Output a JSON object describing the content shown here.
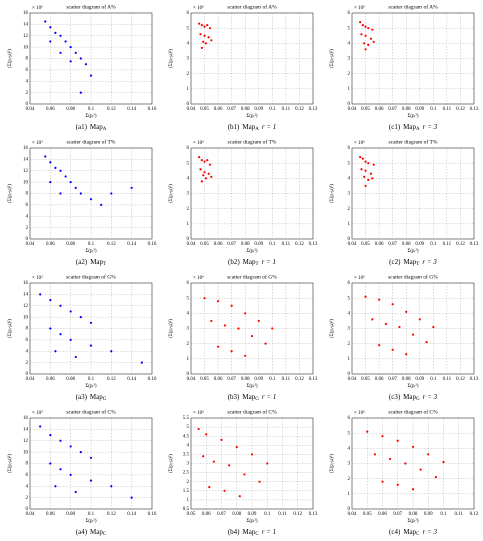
{
  "chart_data": [
    {
      "type": "scatter",
      "title": "scatter diagram of A%",
      "xlabel": "Σ(pᵢ²)",
      "ylabel": "(Σ(pᵢ-μ)²)",
      "multiplier": "× 10⁵",
      "caption_id": "(a1)",
      "caption_map": "Map",
      "caption_sub": "A",
      "color": "#0000ff",
      "xlim": [
        0.04,
        0.16
      ],
      "xticks": [
        0.04,
        0.06,
        0.08,
        0.1,
        0.12,
        0.14,
        0.16
      ],
      "ylim": [
        0,
        16
      ],
      "yticks": [
        0,
        2,
        4,
        6,
        8,
        10,
        12,
        14,
        16
      ],
      "grid": true,
      "x": [
        0.055,
        0.06,
        0.065,
        0.07,
        0.075,
        0.08,
        0.085,
        0.09,
        0.095,
        0.1,
        0.06,
        0.07,
        0.08,
        0.09
      ],
      "values": [
        14.5,
        13.5,
        12.5,
        12,
        11,
        10,
        9,
        8,
        7,
        5,
        11,
        9,
        7.5,
        2
      ]
    },
    {
      "type": "scatter",
      "title": "scatter diagram of A%",
      "xlabel": "Σ(pᵢ²)",
      "ylabel": "(Σ(pᵢ-μ)²)",
      "multiplier": "× 10⁶",
      "caption_id": "(b1)",
      "caption_map": "Map",
      "caption_sub": "A",
      "caption_r": "r = 1",
      "color": "#ff0000",
      "xlim": [
        0.04,
        0.13
      ],
      "xticks": [
        0.04,
        0.05,
        0.06,
        0.07,
        0.08,
        0.09,
        0.1,
        0.11,
        0.12,
        0.13
      ],
      "ylim": [
        0,
        6
      ],
      "yticks": [
        0,
        1,
        2,
        3,
        4,
        5,
        6
      ],
      "grid": true,
      "x": [
        0.046,
        0.048,
        0.05,
        0.052,
        0.054,
        0.047,
        0.05,
        0.053,
        0.049,
        0.051,
        0.055,
        0.048
      ],
      "values": [
        5.3,
        5.2,
        5.1,
        5.2,
        5.0,
        4.6,
        4.5,
        4.4,
        4.1,
        4.0,
        4.2,
        3.7
      ]
    },
    {
      "type": "scatter",
      "title": "scatter diagram of A%",
      "xlabel": "Σ(pᵢ²)",
      "ylabel": "(Σ(pᵢ-μ)²)",
      "multiplier": "× 10⁶",
      "caption_id": "(c1)",
      "caption_map": "Map",
      "caption_sub": "A",
      "caption_r": "r = 3",
      "color": "#ff0000",
      "xlim": [
        0.04,
        0.13
      ],
      "xticks": [
        0.04,
        0.05,
        0.06,
        0.07,
        0.08,
        0.09,
        0.1,
        0.11,
        0.12,
        0.13
      ],
      "ylim": [
        0,
        6
      ],
      "yticks": [
        0,
        1,
        2,
        3,
        4,
        5,
        6
      ],
      "grid": true,
      "x": [
        0.046,
        0.048,
        0.05,
        0.052,
        0.055,
        0.047,
        0.05,
        0.054,
        0.049,
        0.052,
        0.056,
        0.05
      ],
      "values": [
        5.4,
        5.2,
        5.1,
        5.0,
        4.9,
        4.6,
        4.5,
        4.3,
        4.0,
        3.9,
        4.1,
        3.6
      ]
    },
    {
      "type": "scatter",
      "title": "scatter diagram of T%",
      "xlabel": "Σ(pᵢ²)",
      "ylabel": "(Σ(pᵢ-μ)²)",
      "multiplier": "× 10⁵",
      "caption_id": "(a2)",
      "caption_map": "Map",
      "caption_sub": "T",
      "color": "#0000ff",
      "xlim": [
        0.04,
        0.16
      ],
      "xticks": [
        0.04,
        0.06,
        0.08,
        0.1,
        0.12,
        0.14,
        0.16
      ],
      "ylim": [
        0,
        16
      ],
      "yticks": [
        0,
        2,
        4,
        6,
        8,
        10,
        12,
        14,
        16
      ],
      "grid": true,
      "x": [
        0.055,
        0.06,
        0.065,
        0.07,
        0.075,
        0.08,
        0.085,
        0.09,
        0.1,
        0.11,
        0.06,
        0.07,
        0.12,
        0.14
      ],
      "values": [
        14.5,
        13.5,
        12.5,
        12,
        11,
        10,
        9,
        8,
        7,
        6,
        10,
        8,
        8,
        9
      ]
    },
    {
      "type": "scatter",
      "title": "scatter diagram of T%",
      "xlabel": "Σ(pᵢ²)",
      "ylabel": "(Σ(pᵢ-μ)²)",
      "multiplier": "× 10⁶",
      "caption_id": "(b2)",
      "caption_map": "Map",
      "caption_sub": "T",
      "caption_r": "r = 1",
      "color": "#ff0000",
      "xlim": [
        0.04,
        0.13
      ],
      "xticks": [
        0.04,
        0.05,
        0.06,
        0.07,
        0.08,
        0.09,
        0.1,
        0.11,
        0.12,
        0.13
      ],
      "ylim": [
        0,
        6
      ],
      "yticks": [
        0,
        1,
        2,
        3,
        4,
        5,
        6
      ],
      "grid": true,
      "x": [
        0.046,
        0.048,
        0.05,
        0.052,
        0.054,
        0.047,
        0.05,
        0.053,
        0.049,
        0.051,
        0.055,
        0.048
      ],
      "values": [
        5.4,
        5.2,
        5.1,
        5.2,
        4.9,
        4.6,
        4.4,
        4.3,
        4.2,
        4.0,
        4.1,
        3.8
      ]
    },
    {
      "type": "scatter",
      "title": "scatter diagram of T%",
      "xlabel": "Σ(pᵢ²)",
      "ylabel": "(Σ(pᵢ-μ)²)",
      "multiplier": "× 10⁶",
      "caption_id": "(c2)",
      "caption_map": "Map",
      "caption_sub": "T",
      "caption_r": "r = 3",
      "color": "#ff0000",
      "xlim": [
        0.04,
        0.13
      ],
      "xticks": [
        0.04,
        0.05,
        0.06,
        0.07,
        0.08,
        0.09,
        0.1,
        0.11,
        0.12,
        0.13
      ],
      "ylim": [
        0,
        6
      ],
      "yticks": [
        0,
        1,
        2,
        3,
        4,
        5,
        6
      ],
      "grid": true,
      "x": [
        0.046,
        0.048,
        0.05,
        0.052,
        0.056,
        0.047,
        0.05,
        0.054,
        0.049,
        0.052,
        0.055,
        0.05
      ],
      "values": [
        5.4,
        5.3,
        5.1,
        5.0,
        4.9,
        4.6,
        4.5,
        4.3,
        4.1,
        3.9,
        4.0,
        3.5
      ]
    },
    {
      "type": "scatter",
      "title": "scatter diagram of G%",
      "xlabel": "Σ(pᵢ²)",
      "ylabel": "(Σ(pᵢ-μ)²)",
      "multiplier": "× 10⁵",
      "caption_id": "(a3)",
      "caption_map": "Map",
      "caption_sub": "G",
      "color": "#0000ff",
      "xlim": [
        0.04,
        0.16
      ],
      "xticks": [
        0.04,
        0.06,
        0.08,
        0.1,
        0.12,
        0.14,
        0.16
      ],
      "ylim": [
        0,
        16
      ],
      "yticks": [
        0,
        2,
        4,
        6,
        8,
        10,
        12,
        14,
        16
      ],
      "grid": true,
      "x": [
        0.05,
        0.06,
        0.07,
        0.08,
        0.09,
        0.1,
        0.06,
        0.07,
        0.08,
        0.1,
        0.12,
        0.15,
        0.065,
        0.085
      ],
      "values": [
        14,
        13,
        12,
        11,
        10,
        9,
        8,
        7,
        6,
        5,
        4,
        2,
        4,
        3
      ]
    },
    {
      "type": "scatter",
      "title": "scatter diagram of G%",
      "xlabel": "Σ(pᵢ²)",
      "ylabel": "(Σ(pᵢ-μ)²)",
      "multiplier": "× 10⁶",
      "caption_id": "(b3)",
      "caption_map": "Map",
      "caption_sub": "G",
      "caption_r": "r = 1",
      "color": "#ff0000",
      "xlim": [
        0.04,
        0.13
      ],
      "xticks": [
        0.04,
        0.05,
        0.06,
        0.07,
        0.08,
        0.09,
        0.1,
        0.11,
        0.12,
        0.13
      ],
      "ylim": [
        0,
        6
      ],
      "yticks": [
        0,
        1,
        2,
        3,
        4,
        5,
        6
      ],
      "grid": true,
      "x": [
        0.05,
        0.06,
        0.07,
        0.08,
        0.09,
        0.1,
        0.055,
        0.065,
        0.075,
        0.085,
        0.095,
        0.06,
        0.07,
        0.08
      ],
      "values": [
        5,
        4.8,
        4.5,
        4,
        3.5,
        3,
        3.5,
        3.2,
        3,
        2.5,
        2,
        1.8,
        1.5,
        1.2
      ]
    },
    {
      "type": "scatter",
      "title": "scatter diagram of G%",
      "xlabel": "Σ(pᵢ²)",
      "ylabel": "(Σ(pᵢ-μ)²)",
      "multiplier": "× 10⁶",
      "caption_id": "(c3)",
      "caption_map": "Map",
      "caption_sub": "G",
      "caption_r": "r = 3",
      "color": "#ff0000",
      "xlim": [
        0.04,
        0.13
      ],
      "xticks": [
        0.04,
        0.05,
        0.06,
        0.07,
        0.08,
        0.09,
        0.1,
        0.11,
        0.12,
        0.13
      ],
      "ylim": [
        0,
        6
      ],
      "yticks": [
        0,
        1,
        2,
        3,
        4,
        5,
        6
      ],
      "grid": true,
      "x": [
        0.05,
        0.06,
        0.07,
        0.08,
        0.09,
        0.1,
        0.055,
        0.065,
        0.075,
        0.085,
        0.095,
        0.06,
        0.07,
        0.08
      ],
      "values": [
        5.1,
        4.9,
        4.6,
        4.1,
        3.6,
        3.1,
        3.6,
        3.3,
        3.1,
        2.6,
        2.1,
        1.9,
        1.6,
        1.3
      ]
    },
    {
      "type": "scatter",
      "title": "scatter diagram of C%",
      "xlabel": "Σ(pᵢ²)",
      "ylabel": "(Σ(pᵢ-μ)²)",
      "multiplier": "× 10⁵",
      "caption_id": "(a4)",
      "caption_map": "Map",
      "caption_sub": "C",
      "color": "#0000ff",
      "xlim": [
        0.04,
        0.16
      ],
      "xticks": [
        0.04,
        0.06,
        0.08,
        0.1,
        0.12,
        0.14,
        0.16
      ],
      "ylim": [
        0,
        16
      ],
      "yticks": [
        0,
        2,
        4,
        6,
        8,
        10,
        12,
        14,
        16
      ],
      "grid": true,
      "x": [
        0.05,
        0.06,
        0.07,
        0.08,
        0.09,
        0.1,
        0.06,
        0.07,
        0.08,
        0.1,
        0.12,
        0.14,
        0.065,
        0.085
      ],
      "values": [
        14.5,
        13,
        12,
        11,
        10,
        9,
        8,
        7,
        6,
        5,
        4,
        2,
        4,
        3
      ]
    },
    {
      "type": "scatter",
      "title": "scatter diagram of C%",
      "xlabel": "Σ(pᵢ²)",
      "ylabel": "(Σ(pᵢ-μ)²)",
      "multiplier": "× 10⁶",
      "caption_id": "(b4)",
      "caption_map": "Map",
      "caption_sub": "C",
      "caption_r": "r = 1",
      "color": "#ff0000",
      "xlim": [
        0.05,
        0.13
      ],
      "xticks": [
        0.05,
        0.06,
        0.07,
        0.08,
        0.09,
        0.1,
        0.11,
        0.12,
        0.13
      ],
      "ylim": [
        0.5,
        5.5
      ],
      "yticks": [
        0.5,
        1,
        1.5,
        2,
        2.5,
        3,
        3.5,
        4,
        4.5,
        5,
        5.5
      ],
      "grid": true,
      "x": [
        0.055,
        0.06,
        0.07,
        0.08,
        0.09,
        0.1,
        0.058,
        0.065,
        0.075,
        0.085,
        0.095,
        0.062,
        0.072,
        0.082
      ],
      "values": [
        4.9,
        4.6,
        4.3,
        3.9,
        3.5,
        3,
        3.4,
        3.1,
        2.9,
        2.4,
        2,
        1.7,
        1.5,
        1.2
      ]
    },
    {
      "type": "scatter",
      "title": "scatter diagram of C%",
      "xlabel": "Σ(pᵢ²)",
      "ylabel": "(Σ(pᵢ-μ)²)",
      "multiplier": "× 10⁶",
      "caption_id": "(c4)",
      "caption_map": "Map",
      "caption_sub": "C",
      "caption_r": "r = 3",
      "color": "#ff0000",
      "xlim": [
        0.04,
        0.12
      ],
      "xticks": [
        0.04,
        0.05,
        0.06,
        0.07,
        0.08,
        0.09,
        0.1,
        0.11,
        0.12
      ],
      "ylim": [
        0,
        6
      ],
      "yticks": [
        0,
        1,
        2,
        3,
        4,
        5,
        6
      ],
      "grid": true,
      "x": [
        0.05,
        0.06,
        0.07,
        0.08,
        0.09,
        0.1,
        0.055,
        0.065,
        0.075,
        0.085,
        0.095,
        0.06,
        0.07,
        0.08
      ],
      "values": [
        5.1,
        4.8,
        4.5,
        4.1,
        3.6,
        3.1,
        3.6,
        3.3,
        3.0,
        2.6,
        2.1,
        1.8,
        1.6,
        1.3
      ]
    }
  ]
}
